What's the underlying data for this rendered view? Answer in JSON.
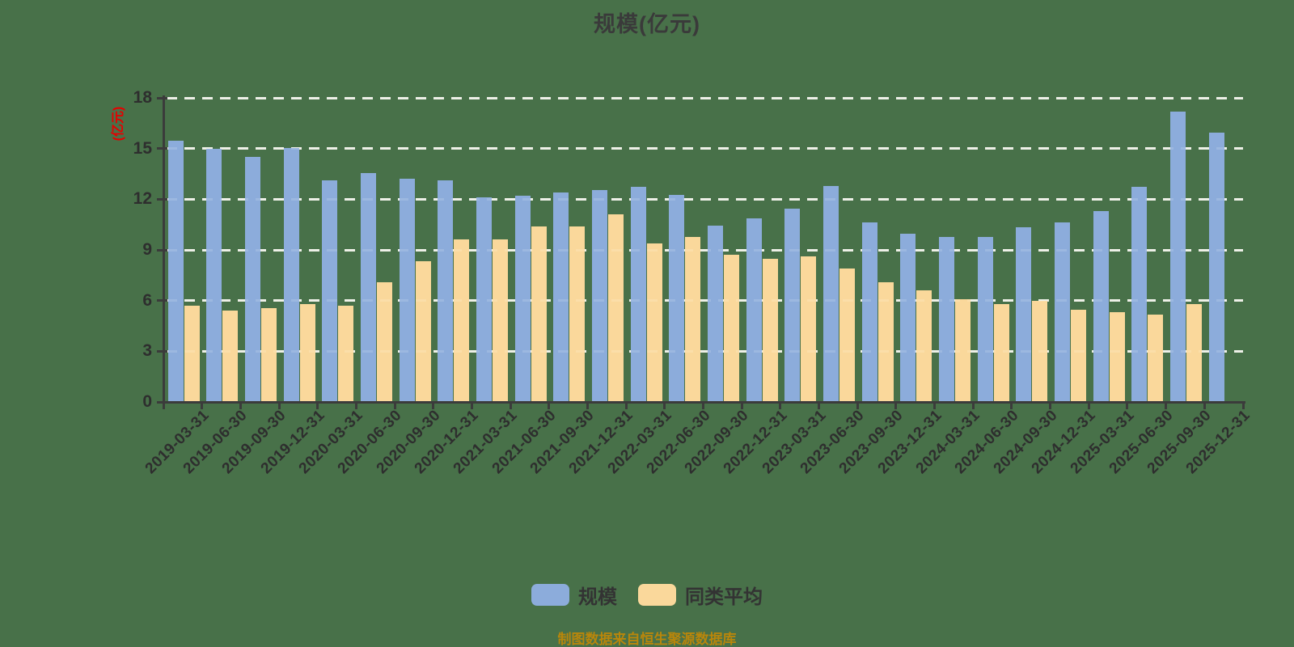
{
  "title": "规模(亿元)",
  "y_axis_name": "(亿元)",
  "footer": "制图数据来自恒生聚源数据库",
  "legend": {
    "items": [
      {
        "label": "规模"
      },
      {
        "label": "同类平均"
      }
    ]
  },
  "colors": {
    "background": "#487149",
    "bar_scale": "#8CACDB",
    "bar_average": "#FAD89B",
    "grid_line": "#F0F0E8",
    "axis": "#3B3B3B",
    "tick_text": "#2E2E2E",
    "title_text": "#3A3A3A",
    "axis_name_red": "#E60000",
    "footer_gold": "#B8860B"
  },
  "chart_data": {
    "type": "bar",
    "title": "规模(亿元)",
    "ylabel": "(亿元)",
    "xlabel": "",
    "ylim": [
      0,
      18
    ],
    "yticks": [
      0,
      3,
      6,
      9,
      12,
      15,
      18
    ],
    "grid": true,
    "grid_style": "dashed",
    "legend_position": "bottom",
    "categories": [
      "2019-03-31",
      "2019-06-30",
      "2019-09-30",
      "2019-12-31",
      "2020-03-31",
      "2020-06-30",
      "2020-09-30",
      "2020-12-31",
      "2021-03-31",
      "2021-06-30",
      "2021-09-30",
      "2021-12-31",
      "2022-03-31",
      "2022-06-30",
      "2022-09-30",
      "2022-12-31",
      "2023-03-31",
      "2023-06-30",
      "2023-09-30",
      "2023-12-31",
      "2024-03-31",
      "2024-06-30",
      "2024-09-30",
      "2024-12-31",
      "2025-03-31",
      "2025-06-30",
      "2025-09-30",
      "2025-12-31"
    ],
    "series": [
      {
        "id": "scale",
        "name": "规模",
        "color": "#8CACDB",
        "values": [
          15.45,
          15.0,
          14.5,
          15.05,
          13.1,
          13.55,
          13.2,
          13.1,
          12.1,
          12.2,
          12.4,
          12.55,
          12.75,
          12.25,
          10.45,
          10.85,
          11.45,
          12.8,
          10.65,
          9.95,
          9.75,
          9.75,
          10.35,
          10.65,
          11.3,
          12.75,
          17.2,
          15.95
        ]
      },
      {
        "id": "peer-average",
        "name": "同类平均",
        "color": "#FAD89B",
        "values": [
          5.7,
          5.4,
          5.55,
          5.8,
          5.7,
          7.1,
          8.35,
          9.6,
          9.6,
          10.4,
          10.4,
          11.1,
          9.4,
          9.75,
          8.7,
          8.45,
          8.6,
          7.9,
          7.1,
          6.6,
          6.1,
          5.8,
          6.0,
          5.45,
          5.3,
          5.15,
          5.8,
          null
        ]
      }
    ]
  }
}
